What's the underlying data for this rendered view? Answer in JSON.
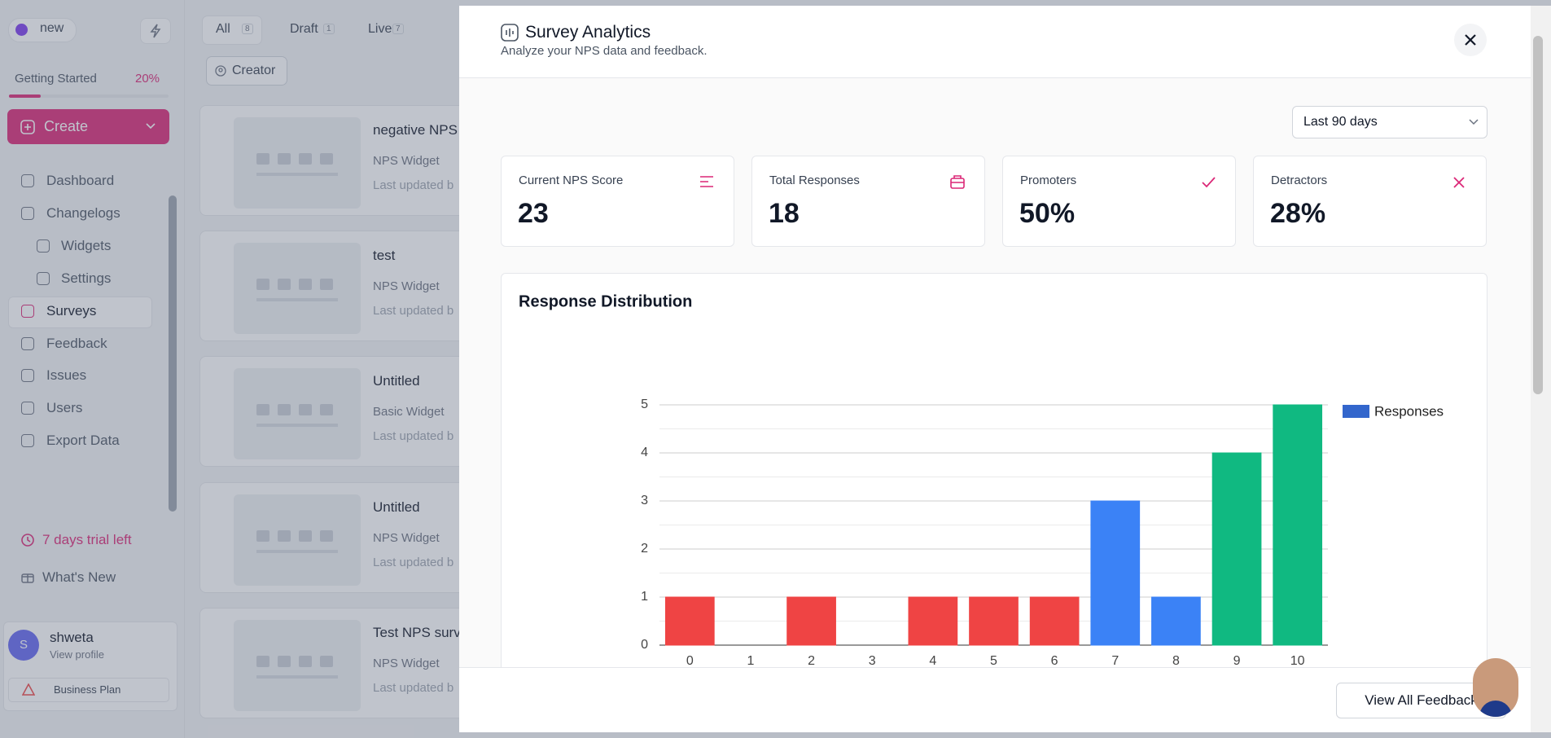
{
  "sidebar": {
    "workspace": "new",
    "getting_started": {
      "label": "Getting Started",
      "progress": {
        "value": 20,
        "label": "20%"
      }
    },
    "create": "Create",
    "nav": [
      {
        "label": "Dashboard"
      },
      {
        "label": "Changelogs",
        "children": [
          "Widgets",
          "Settings"
        ]
      },
      {
        "label": "Surveys"
      },
      {
        "label": "Feedback"
      },
      {
        "label": "Issues"
      },
      {
        "label": "Users"
      },
      {
        "label": "Export Data"
      }
    ],
    "trial": "7 days trial left",
    "whats_new": "What's New",
    "profile": {
      "initial": "S",
      "name": "shweta",
      "link": "View profile"
    },
    "plan": "Business Plan"
  },
  "list": {
    "tabs": [
      {
        "label": "All",
        "count": "8"
      },
      {
        "label": "Draft",
        "count": "1"
      },
      {
        "label": "Live",
        "count": "7"
      }
    ],
    "filter": "Creator",
    "items": [
      {
        "title": "negative NPS",
        "type": "NPS Widget",
        "updated": "Last updated b"
      },
      {
        "title": "test",
        "type": "NPS Widget",
        "updated": "Last updated b"
      },
      {
        "title": "Untitled",
        "type": "Basic Widget",
        "updated": "Last updated b"
      },
      {
        "title": "Untitled",
        "type": "NPS Widget",
        "updated": "Last updated b"
      },
      {
        "title": "Test NPS surv",
        "type": "NPS Widget",
        "updated": "Last updated b"
      }
    ]
  },
  "modal": {
    "title": "Survey Analytics",
    "subtitle": "Analyze your NPS data and feedback.",
    "range": "Last 90 days",
    "stats": [
      {
        "label": "Current NPS Score",
        "value": "23"
      },
      {
        "label": "Total Responses",
        "value": "18"
      },
      {
        "label": "Promoters",
        "value": "50%"
      },
      {
        "label": "Detractors",
        "value": "28%"
      }
    ],
    "footer_button": "View All Feedback"
  },
  "chart_data": {
    "type": "bar",
    "title": "Response Distribution",
    "categories": [
      "0",
      "1",
      "2",
      "3",
      "4",
      "5",
      "6",
      "7",
      "8",
      "9",
      "10"
    ],
    "series": [
      {
        "name": "Responses",
        "color": "#3366cc",
        "values": [
          1,
          0,
          1,
          0,
          1,
          1,
          1,
          3,
          1,
          4,
          5
        ]
      }
    ],
    "bar_colors": [
      "#ef4444",
      "#ef4444",
      "#ef4444",
      "#ef4444",
      "#ef4444",
      "#ef4444",
      "#ef4444",
      "#3b82f6",
      "#3b82f6",
      "#10b981",
      "#10b981"
    ],
    "ylim": [
      0,
      5
    ],
    "yticks": [
      0,
      1,
      2,
      3,
      4,
      5
    ],
    "minor_yticks": [
      0.5,
      1.5,
      2.5,
      3.5,
      4.5
    ],
    "grid": true,
    "legend": "right"
  }
}
